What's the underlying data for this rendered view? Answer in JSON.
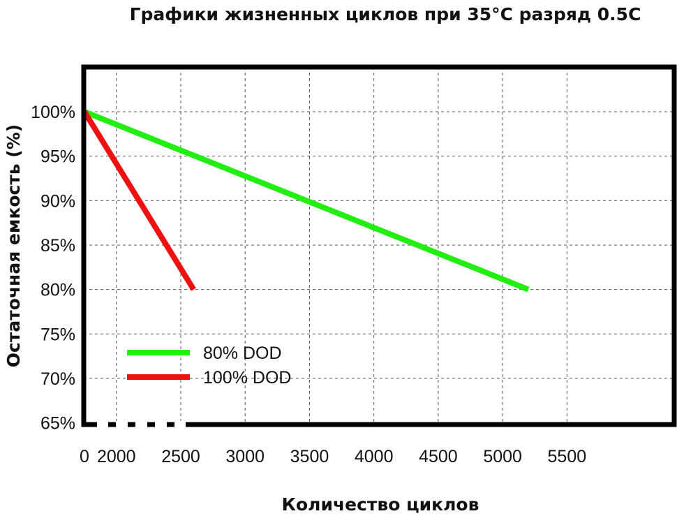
{
  "chart_data": {
    "type": "line",
    "title": "Графики жизненных циклов при 35°C разряд 0.5C",
    "xlabel": "Количество циклов",
    "ylabel": "Остаточная емкость (%)",
    "x_axis": {
      "broken_after": 0,
      "tick_labels": [
        "0",
        "2000",
        "2500",
        "3000",
        "3500",
        "4000",
        "4500",
        "5000",
        "5500"
      ],
      "range": [
        1600,
        5900
      ]
    },
    "ylim": [
      65,
      105
    ],
    "y_tick_values": [
      65,
      70,
      75,
      80,
      85,
      90,
      95,
      100
    ],
    "y_tick_labels": [
      "65%",
      "70%",
      "75%",
      "80%",
      "85%",
      "90%",
      "95%",
      "100%"
    ],
    "grid": true,
    "legend_position": "bottom-left",
    "series": [
      {
        "name": "80% DOD",
        "color": "#22ee11",
        "x": [
          0,
          5200
        ],
        "y": [
          100,
          80
        ]
      },
      {
        "name": "100% DOD",
        "color": "#ee1111",
        "x": [
          0,
          2600
        ],
        "y": [
          100,
          80
        ]
      }
    ]
  }
}
